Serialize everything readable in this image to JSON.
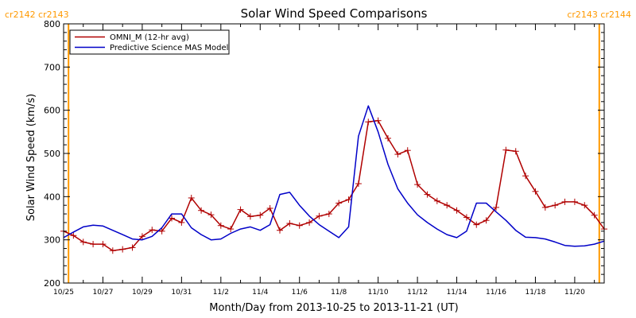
{
  "chart_data": {
    "type": "line",
    "title": "Solar Wind Speed Comparisons",
    "xlabel": "Month/Day from 2013-10-25 to 2013-11-21 (UT)",
    "ylabel": "Solar Wind Speed (km/s)",
    "ylim": [
      200,
      800
    ],
    "xlim": [
      "2013-10-25",
      "2013-11-21T12:00"
    ],
    "grid": false,
    "legend_position": "top-left",
    "y_ticks": [
      "200",
      "300",
      "400",
      "500",
      "600",
      "700",
      "800"
    ],
    "x_ticks": [
      {
        "date": "2013-10-25",
        "label": "10/25"
      },
      {
        "date": "2013-10-27",
        "label": "10/27"
      },
      {
        "date": "2013-10-29",
        "label": "10/29"
      },
      {
        "date": "2013-10-31",
        "label": "10/31"
      },
      {
        "date": "2013-11-02",
        "label": "11/2"
      },
      {
        "date": "2013-11-04",
        "label": "11/4"
      },
      {
        "date": "2013-11-06",
        "label": "11/6"
      },
      {
        "date": "2013-11-08",
        "label": "11/8"
      },
      {
        "date": "2013-11-10",
        "label": "11/10"
      },
      {
        "date": "2013-11-12",
        "label": "11/12"
      },
      {
        "date": "2013-11-14",
        "label": "11/14"
      },
      {
        "date": "2013-11-16",
        "label": "11/16"
      },
      {
        "date": "2013-11-18",
        "label": "11/18"
      },
      {
        "date": "2013-11-20",
        "label": "11/20"
      }
    ],
    "carrington_markers": [
      {
        "date": "2013-10-25T06:00",
        "label": "cr2142 cr2143",
        "position": "left"
      },
      {
        "date": "2013-11-21T06:00",
        "label": "cr2143 cr2144",
        "position": "right"
      }
    ],
    "series": [
      {
        "name": "OMNI_M (12-hr avg)",
        "color": "#b00000",
        "marker": "plus",
        "points": [
          [
            "2013-10-25T00:00",
            320
          ],
          [
            "2013-10-25T12:00",
            310
          ],
          [
            "2013-10-26T00:00",
            295
          ],
          [
            "2013-10-26T12:00",
            290
          ],
          [
            "2013-10-27T00:00",
            290
          ],
          [
            "2013-10-27T12:00",
            275
          ],
          [
            "2013-10-28T00:00",
            278
          ],
          [
            "2013-10-28T12:00",
            282
          ],
          [
            "2013-10-29T00:00",
            308
          ],
          [
            "2013-10-29T12:00",
            323
          ],
          [
            "2013-10-30T00:00",
            320
          ],
          [
            "2013-10-30T12:00",
            350
          ],
          [
            "2013-10-31T00:00",
            340
          ],
          [
            "2013-10-31T12:00",
            397
          ],
          [
            "2013-11-01T00:00",
            368
          ],
          [
            "2013-11-01T12:00",
            358
          ],
          [
            "2013-11-02T00:00",
            333
          ],
          [
            "2013-11-02T12:00",
            325
          ],
          [
            "2013-11-03T00:00",
            370
          ],
          [
            "2013-11-03T12:00",
            354
          ],
          [
            "2013-11-04T00:00",
            357
          ],
          [
            "2013-11-04T12:00",
            373
          ],
          [
            "2013-11-05T00:00",
            322
          ],
          [
            "2013-11-05T12:00",
            338
          ],
          [
            "2013-11-06T00:00",
            333
          ],
          [
            "2013-11-06T12:00",
            340
          ],
          [
            "2013-11-07T00:00",
            355
          ],
          [
            "2013-11-07T12:00",
            360
          ],
          [
            "2013-11-08T00:00",
            385
          ],
          [
            "2013-11-08T12:00",
            393
          ],
          [
            "2013-11-09T00:00",
            430
          ],
          [
            "2013-11-09T12:00",
            573
          ],
          [
            "2013-11-10T00:00",
            576
          ],
          [
            "2013-11-10T12:00",
            535
          ],
          [
            "2013-11-11T00:00",
            498
          ],
          [
            "2013-11-11T12:00",
            507
          ],
          [
            "2013-11-12T00:00",
            428
          ],
          [
            "2013-11-12T12:00",
            405
          ],
          [
            "2013-11-13T00:00",
            390
          ],
          [
            "2013-11-13T12:00",
            380
          ],
          [
            "2013-11-14T00:00",
            368
          ],
          [
            "2013-11-14T12:00",
            352
          ],
          [
            "2013-11-15T00:00",
            335
          ],
          [
            "2013-11-15T12:00",
            345
          ],
          [
            "2013-11-16T00:00",
            375
          ],
          [
            "2013-11-16T12:00",
            508
          ],
          [
            "2013-11-17T00:00",
            505
          ],
          [
            "2013-11-17T12:00",
            448
          ],
          [
            "2013-11-18T00:00",
            412
          ],
          [
            "2013-11-18T12:00",
            375
          ],
          [
            "2013-11-19T00:00",
            380
          ],
          [
            "2013-11-19T12:00",
            388
          ],
          [
            "2013-11-20T00:00",
            388
          ],
          [
            "2013-11-20T12:00",
            380
          ],
          [
            "2013-11-21T00:00",
            357
          ],
          [
            "2013-11-21T12:00",
            325
          ]
        ]
      },
      {
        "name": "Predictive Science MAS Model",
        "color": "#0000c8",
        "marker": "none",
        "points": [
          [
            "2013-10-25T00:00",
            305
          ],
          [
            "2013-10-25T12:00",
            318
          ],
          [
            "2013-10-26T00:00",
            330
          ],
          [
            "2013-10-26T12:00",
            334
          ],
          [
            "2013-10-27T00:00",
            332
          ],
          [
            "2013-10-27T12:00",
            322
          ],
          [
            "2013-10-28T00:00",
            312
          ],
          [
            "2013-10-28T12:00",
            302
          ],
          [
            "2013-10-29T00:00",
            300
          ],
          [
            "2013-10-29T12:00",
            308
          ],
          [
            "2013-10-30T00:00",
            328
          ],
          [
            "2013-10-30T12:00",
            360
          ],
          [
            "2013-10-31T00:00",
            360
          ],
          [
            "2013-10-31T12:00",
            328
          ],
          [
            "2013-11-01T00:00",
            312
          ],
          [
            "2013-11-01T12:00",
            300
          ],
          [
            "2013-11-02T00:00",
            302
          ],
          [
            "2013-11-02T12:00",
            315
          ],
          [
            "2013-11-03T00:00",
            325
          ],
          [
            "2013-11-03T12:00",
            330
          ],
          [
            "2013-11-04T00:00",
            322
          ],
          [
            "2013-11-04T12:00",
            335
          ],
          [
            "2013-11-05T00:00",
            405
          ],
          [
            "2013-11-05T12:00",
            410
          ],
          [
            "2013-11-06T00:00",
            380
          ],
          [
            "2013-11-06T12:00",
            355
          ],
          [
            "2013-11-07T00:00",
            335
          ],
          [
            "2013-11-07T12:00",
            320
          ],
          [
            "2013-11-08T00:00",
            305
          ],
          [
            "2013-11-08T12:00",
            330
          ],
          [
            "2013-11-09T00:00",
            540
          ],
          [
            "2013-11-09T12:00",
            610
          ],
          [
            "2013-11-10T00:00",
            550
          ],
          [
            "2013-11-10T12:00",
            475
          ],
          [
            "2013-11-11T00:00",
            418
          ],
          [
            "2013-11-11T12:00",
            385
          ],
          [
            "2013-11-12T00:00",
            358
          ],
          [
            "2013-11-12T12:00",
            340
          ],
          [
            "2013-11-13T00:00",
            325
          ],
          [
            "2013-11-13T12:00",
            312
          ],
          [
            "2013-11-14T00:00",
            305
          ],
          [
            "2013-11-14T12:00",
            320
          ],
          [
            "2013-11-15T00:00",
            385
          ],
          [
            "2013-11-15T12:00",
            385
          ],
          [
            "2013-11-16T00:00",
            365
          ],
          [
            "2013-11-16T12:00",
            345
          ],
          [
            "2013-11-17T00:00",
            322
          ],
          [
            "2013-11-17T12:00",
            306
          ],
          [
            "2013-11-18T00:00",
            305
          ],
          [
            "2013-11-18T12:00",
            302
          ],
          [
            "2013-11-19T00:00",
            295
          ],
          [
            "2013-11-19T12:00",
            287
          ],
          [
            "2013-11-20T00:00",
            285
          ],
          [
            "2013-11-20T12:00",
            286
          ],
          [
            "2013-11-21T00:00",
            290
          ],
          [
            "2013-11-21T12:00",
            297
          ]
        ]
      }
    ]
  },
  "colors": {
    "marker_line": "#ff9900",
    "marker_label": "#ff9900",
    "axis": "#000000",
    "legend_border": "#000000"
  }
}
